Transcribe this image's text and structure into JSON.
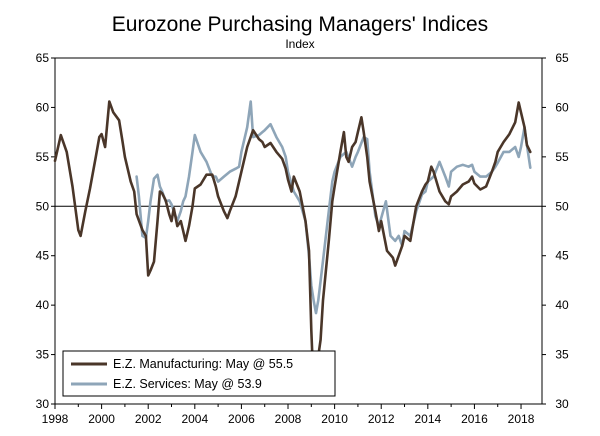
{
  "chart_data": {
    "type": "line",
    "title": "Eurozone Purchasing Managers' Indices",
    "subtitle": "Index",
    "xlabel": "",
    "ylabel": "",
    "xlim": [
      1998,
      2018.9
    ],
    "ylim": [
      30,
      65
    ],
    "yticks": [
      30,
      35,
      40,
      45,
      50,
      55,
      60,
      65
    ],
    "xticks": [
      1998,
      2000,
      2002,
      2004,
      2006,
      2008,
      2010,
      2012,
      2014,
      2016,
      2018
    ],
    "reference_line": 50,
    "grid": false,
    "legend_position": "bottom-left",
    "colors": {
      "manufacturing": "#4a3629",
      "services": "#8ea5b8"
    },
    "series": [
      {
        "name": "E.Z. Manufacturing: May @ 55.5",
        "key": "manufacturing",
        "points": [
          [
            1998.0,
            54.6
          ],
          [
            1998.25,
            57.2
          ],
          [
            1998.5,
            55.5
          ],
          [
            1998.75,
            52.0
          ],
          [
            1999.0,
            47.6
          ],
          [
            1999.1,
            47.0
          ],
          [
            1999.3,
            49.5
          ],
          [
            1999.5,
            51.8
          ],
          [
            1999.75,
            55.0
          ],
          [
            1999.9,
            57.0
          ],
          [
            2000.0,
            57.3
          ],
          [
            2000.15,
            56.0
          ],
          [
            2000.33,
            60.6
          ],
          [
            2000.5,
            59.5
          ],
          [
            2000.75,
            58.7
          ],
          [
            2000.9,
            56.5
          ],
          [
            2001.0,
            55.0
          ],
          [
            2001.25,
            52.5
          ],
          [
            2001.4,
            51.5
          ],
          [
            2001.5,
            49.2
          ],
          [
            2001.75,
            47.6
          ],
          [
            2001.9,
            47.0
          ],
          [
            2002.0,
            43.0
          ],
          [
            2002.1,
            43.5
          ],
          [
            2002.25,
            44.4
          ],
          [
            2002.4,
            48.5
          ],
          [
            2002.5,
            51.5
          ],
          [
            2002.6,
            51.3
          ],
          [
            2002.75,
            50.6
          ],
          [
            2002.9,
            49.2
          ],
          [
            2003.0,
            48.5
          ],
          [
            2003.1,
            49.8
          ],
          [
            2003.25,
            48.0
          ],
          [
            2003.4,
            48.5
          ],
          [
            2003.5,
            47.5
          ],
          [
            2003.6,
            46.5
          ],
          [
            2003.75,
            48.0
          ],
          [
            2003.9,
            50.0
          ],
          [
            2004.0,
            51.8
          ],
          [
            2004.25,
            52.2
          ],
          [
            2004.5,
            53.2
          ],
          [
            2004.75,
            53.2
          ],
          [
            2004.9,
            52.0
          ],
          [
            2005.0,
            51.0
          ],
          [
            2005.25,
            49.5
          ],
          [
            2005.4,
            48.8
          ],
          [
            2005.5,
            49.5
          ],
          [
            2005.75,
            51.0
          ],
          [
            2005.9,
            52.5
          ],
          [
            2006.0,
            53.5
          ],
          [
            2006.25,
            56.0
          ],
          [
            2006.5,
            57.7
          ],
          [
            2006.75,
            56.8
          ],
          [
            2006.9,
            56.5
          ],
          [
            2007.0,
            56.0
          ],
          [
            2007.25,
            56.4
          ],
          [
            2007.5,
            55.5
          ],
          [
            2007.75,
            54.8
          ],
          [
            2007.9,
            53.8
          ],
          [
            2008.0,
            52.7
          ],
          [
            2008.15,
            51.5
          ],
          [
            2008.25,
            53.0
          ],
          [
            2008.5,
            51.5
          ],
          [
            2008.75,
            48.5
          ],
          [
            2008.9,
            45.5
          ],
          [
            2009.0,
            37.5
          ],
          [
            2009.05,
            34.5
          ],
          [
            2009.1,
            33.6
          ],
          [
            2009.2,
            33.8
          ],
          [
            2009.25,
            34.0
          ],
          [
            2009.4,
            36.5
          ],
          [
            2009.5,
            40.5
          ],
          [
            2009.75,
            46.5
          ],
          [
            2009.9,
            50.5
          ],
          [
            2010.0,
            52.0
          ],
          [
            2010.25,
            55.5
          ],
          [
            2010.4,
            57.5
          ],
          [
            2010.5,
            55.0
          ],
          [
            2010.6,
            54.5
          ],
          [
            2010.75,
            56.0
          ],
          [
            2010.9,
            56.5
          ],
          [
            2011.0,
            57.5
          ],
          [
            2011.15,
            59.0
          ],
          [
            2011.25,
            57.5
          ],
          [
            2011.4,
            55.0
          ],
          [
            2011.5,
            52.5
          ],
          [
            2011.75,
            49.5
          ],
          [
            2011.9,
            47.5
          ],
          [
            2012.0,
            48.5
          ],
          [
            2012.25,
            45.5
          ],
          [
            2012.5,
            44.8
          ],
          [
            2012.6,
            44.0
          ],
          [
            2012.75,
            45.0
          ],
          [
            2012.9,
            46.0
          ],
          [
            2013.0,
            47.0
          ],
          [
            2013.25,
            46.5
          ],
          [
            2013.5,
            50.0
          ],
          [
            2013.75,
            51.5
          ],
          [
            2013.9,
            52.2
          ],
          [
            2014.0,
            52.5
          ],
          [
            2014.15,
            54.0
          ],
          [
            2014.25,
            53.5
          ],
          [
            2014.5,
            51.5
          ],
          [
            2014.75,
            50.5
          ],
          [
            2014.9,
            50.2
          ],
          [
            2015.0,
            51.0
          ],
          [
            2015.25,
            51.5
          ],
          [
            2015.5,
            52.2
          ],
          [
            2015.75,
            52.5
          ],
          [
            2015.9,
            53.0
          ],
          [
            2016.0,
            52.3
          ],
          [
            2016.25,
            51.7
          ],
          [
            2016.5,
            52.0
          ],
          [
            2016.75,
            53.5
          ],
          [
            2016.9,
            54.5
          ],
          [
            2017.0,
            55.5
          ],
          [
            2017.25,
            56.5
          ],
          [
            2017.5,
            57.3
          ],
          [
            2017.75,
            58.5
          ],
          [
            2017.9,
            60.5
          ],
          [
            2018.0,
            59.5
          ],
          [
            2018.15,
            58.0
          ],
          [
            2018.25,
            56.2
          ],
          [
            2018.4,
            55.5
          ]
        ]
      },
      {
        "name": "E.Z. Services: May @ 53.9",
        "key": "services",
        "points": [
          [
            2001.5,
            53.0
          ],
          [
            2001.6,
            51.0
          ],
          [
            2001.75,
            47.0
          ],
          [
            2001.9,
            46.8
          ],
          [
            2002.0,
            48.5
          ],
          [
            2002.1,
            50.5
          ],
          [
            2002.25,
            52.8
          ],
          [
            2002.4,
            53.2
          ],
          [
            2002.5,
            52.0
          ],
          [
            2002.6,
            51.5
          ],
          [
            2002.75,
            50.5
          ],
          [
            2002.9,
            50.6
          ],
          [
            2003.0,
            50.2
          ],
          [
            2003.25,
            48.5
          ],
          [
            2003.4,
            49.5
          ],
          [
            2003.5,
            50.5
          ],
          [
            2003.6,
            51.0
          ],
          [
            2003.75,
            53.0
          ],
          [
            2003.9,
            55.5
          ],
          [
            2004.0,
            57.2
          ],
          [
            2004.25,
            55.5
          ],
          [
            2004.5,
            54.5
          ],
          [
            2004.75,
            53.0
          ],
          [
            2004.9,
            53.0
          ],
          [
            2005.0,
            52.5
          ],
          [
            2005.25,
            53.0
          ],
          [
            2005.5,
            53.5
          ],
          [
            2005.75,
            53.8
          ],
          [
            2005.9,
            54.0
          ],
          [
            2006.0,
            55.5
          ],
          [
            2006.25,
            58.0
          ],
          [
            2006.4,
            60.6
          ],
          [
            2006.5,
            57.0
          ],
          [
            2006.75,
            57.2
          ],
          [
            2006.9,
            57.5
          ],
          [
            2007.0,
            57.7
          ],
          [
            2007.25,
            58.3
          ],
          [
            2007.5,
            57.0
          ],
          [
            2007.75,
            56.0
          ],
          [
            2007.9,
            55.0
          ],
          [
            2008.0,
            53.5
          ],
          [
            2008.25,
            51.5
          ],
          [
            2008.5,
            50.5
          ],
          [
            2008.75,
            48.5
          ],
          [
            2008.9,
            45.0
          ],
          [
            2009.0,
            42.0
          ],
          [
            2009.1,
            40.5
          ],
          [
            2009.2,
            39.2
          ],
          [
            2009.3,
            40.5
          ],
          [
            2009.5,
            44.5
          ],
          [
            2009.75,
            49.5
          ],
          [
            2009.9,
            52.5
          ],
          [
            2010.0,
            53.5
          ],
          [
            2010.25,
            55.0
          ],
          [
            2010.5,
            55.5
          ],
          [
            2010.75,
            54.0
          ],
          [
            2010.9,
            55.0
          ],
          [
            2011.0,
            55.5
          ],
          [
            2011.25,
            57.0
          ],
          [
            2011.4,
            56.8
          ],
          [
            2011.5,
            53.5
          ],
          [
            2011.75,
            49.0
          ],
          [
            2011.9,
            48.0
          ],
          [
            2012.0,
            48.8
          ],
          [
            2012.2,
            50.5
          ],
          [
            2012.4,
            47.0
          ],
          [
            2012.6,
            46.5
          ],
          [
            2012.75,
            47.0
          ],
          [
            2012.9,
            46.0
          ],
          [
            2013.0,
            47.5
          ],
          [
            2013.25,
            47.0
          ],
          [
            2013.5,
            49.5
          ],
          [
            2013.75,
            51.2
          ],
          [
            2013.9,
            51.5
          ],
          [
            2014.0,
            52.5
          ],
          [
            2014.25,
            53.0
          ],
          [
            2014.5,
            54.5
          ],
          [
            2014.75,
            53.0
          ],
          [
            2014.9,
            52.0
          ],
          [
            2015.0,
            53.5
          ],
          [
            2015.25,
            54.0
          ],
          [
            2015.5,
            54.2
          ],
          [
            2015.75,
            54.0
          ],
          [
            2015.9,
            54.2
          ],
          [
            2016.0,
            53.5
          ],
          [
            2016.25,
            53.0
          ],
          [
            2016.5,
            53.0
          ],
          [
            2016.75,
            53.5
          ],
          [
            2016.9,
            54.0
          ],
          [
            2017.0,
            54.4
          ],
          [
            2017.25,
            55.5
          ],
          [
            2017.5,
            55.5
          ],
          [
            2017.75,
            56.0
          ],
          [
            2017.9,
            55.0
          ],
          [
            2018.0,
            56.0
          ],
          [
            2018.15,
            58.0
          ],
          [
            2018.25,
            56.2
          ],
          [
            2018.4,
            53.9
          ]
        ]
      }
    ]
  }
}
